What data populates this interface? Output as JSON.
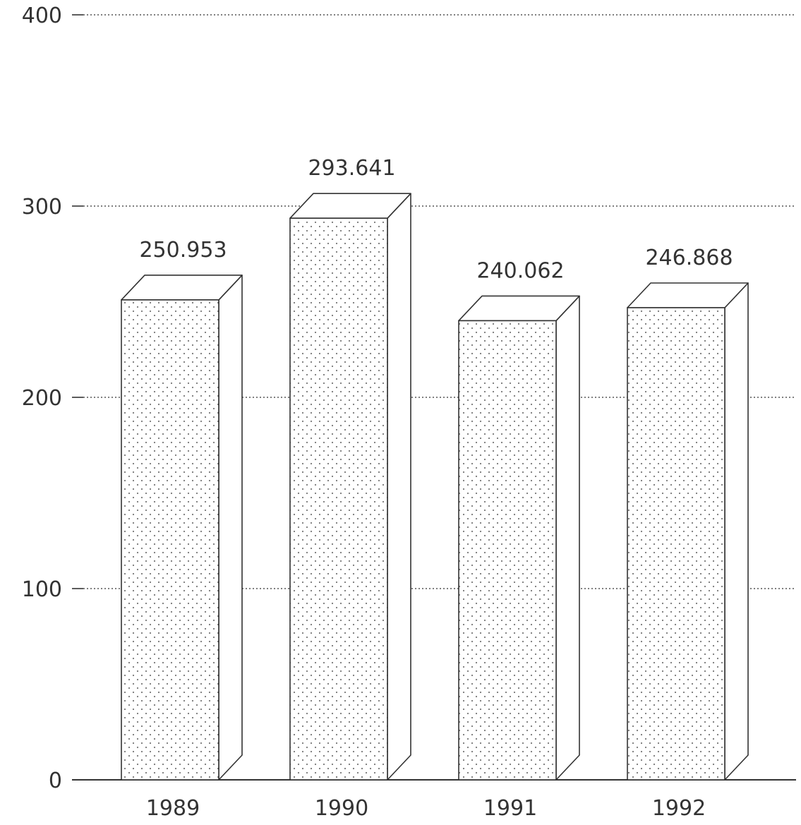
{
  "chart_data": {
    "type": "bar",
    "categories": [
      "1989",
      "1990",
      "1991",
      "1992"
    ],
    "series": [
      {
        "values": [
          250.953,
          293.641,
          240.062,
          246.868
        ]
      }
    ],
    "value_labels": [
      "250.953",
      "293.641",
      "240.062",
      "246.868"
    ],
    "yticks": [
      0,
      100,
      200,
      300,
      400
    ],
    "ytick_labels": [
      "0",
      "100",
      "200",
      "300",
      "400"
    ],
    "ylim": [
      0,
      400
    ],
    "grid": true,
    "three_d": true,
    "bar_fill": "dotted",
    "colors": {
      "stroke": "#333333",
      "grid": "#555555",
      "dots": "#777777"
    }
  }
}
